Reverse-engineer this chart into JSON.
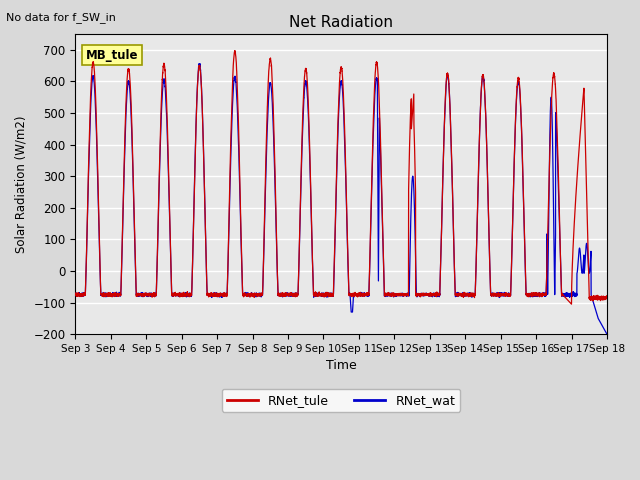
{
  "title": "Net Radiation",
  "subtitle": "No data for f_SW_in",
  "ylabel": "Solar Radiation (W/m2)",
  "xlabel": "Time",
  "ylim": [
    -200,
    750
  ],
  "xlim": [
    0,
    15
  ],
  "xtick_labels": [
    "Sep 3",
    "Sep 4",
    "Sep 5",
    "Sep 6",
    "Sep 7",
    "Sep 8",
    "Sep 9",
    "Sep 10",
    "Sep 11",
    "Sep 12",
    "Sep 13",
    "Sep 14",
    "Sep 15",
    "Sep 16",
    "Sep 17",
    "Sep 18"
  ],
  "legend_labels": [
    "RNet_tule",
    "RNet_wat"
  ],
  "legend_colors": [
    "#cc0000",
    "#0000cc"
  ],
  "fig_facecolor": "#d9d9d9",
  "ax_facecolor": "#e8e8e8",
  "annotation_box_text": "MB_tule",
  "annotation_box_color": "#ffff99",
  "annotation_box_edgecolor": "#999900",
  "grid_color": "white",
  "tule_peaks": [
    660,
    640,
    655,
    650,
    695,
    670,
    640,
    645,
    660,
    560,
    625,
    620,
    610,
    625,
    580
  ],
  "wat_peaks": [
    615,
    600,
    605,
    655,
    615,
    595,
    600,
    600,
    610,
    300,
    620,
    615,
    600,
    550,
    95
  ],
  "night_tule": -75,
  "night_wat": -75,
  "yticks": [
    -200,
    -100,
    0,
    100,
    200,
    300,
    400,
    500,
    600,
    700
  ],
  "figsize": [
    6.4,
    4.8
  ],
  "dpi": 100
}
